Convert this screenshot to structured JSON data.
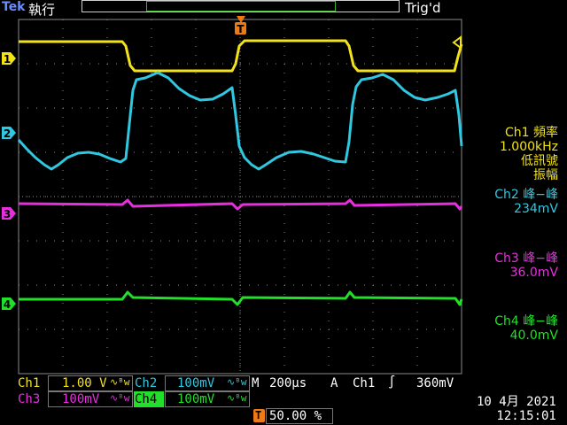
{
  "header": {
    "brand": "Tek",
    "run_state": "執行",
    "trigger_state": "Trig'd"
  },
  "channels": {
    "ch1": {
      "marker": "1",
      "color": "#f2e21a"
    },
    "ch2": {
      "marker": "2",
      "color": "#2fc8e0"
    },
    "ch3": {
      "marker": "3",
      "color": "#e72fe0"
    },
    "ch4": {
      "marker": "4",
      "color": "#22e02a"
    }
  },
  "trigger_marker": "T",
  "measurements": {
    "m1_line1": "Ch1 頻率",
    "m1_line2": "1.000kHz",
    "m1_line3": "低訊號",
    "m1_line4": "振幅",
    "m2_line1": "Ch2 峰−峰",
    "m2_line2": "234mV",
    "m3_line1": "Ch3 峰−峰",
    "m3_line2": "36.0mV",
    "m4_line1": "Ch4 峰−峰",
    "m4_line2": "40.0mV"
  },
  "bottom": {
    "ch1_label": "Ch1",
    "ch1_scale": "1.00 V",
    "ch2_label": "Ch2",
    "ch2_scale": "100mV",
    "bw_symbol": "∿ᴮw",
    "ch3_label": "Ch3",
    "ch3_scale": "100mV",
    "ch4_label": "Ch4",
    "ch4_scale": "100mV",
    "timebase_label": "M",
    "timebase": "200µs",
    "trigger_mode": "A",
    "trigger_source": "Ch1",
    "trigger_slope": "∫",
    "trigger_level": "360mV",
    "trigger_position_marker": "T",
    "trigger_position": "50.00 %",
    "date": "10 4月  2021",
    "time": "12:15:01"
  }
}
